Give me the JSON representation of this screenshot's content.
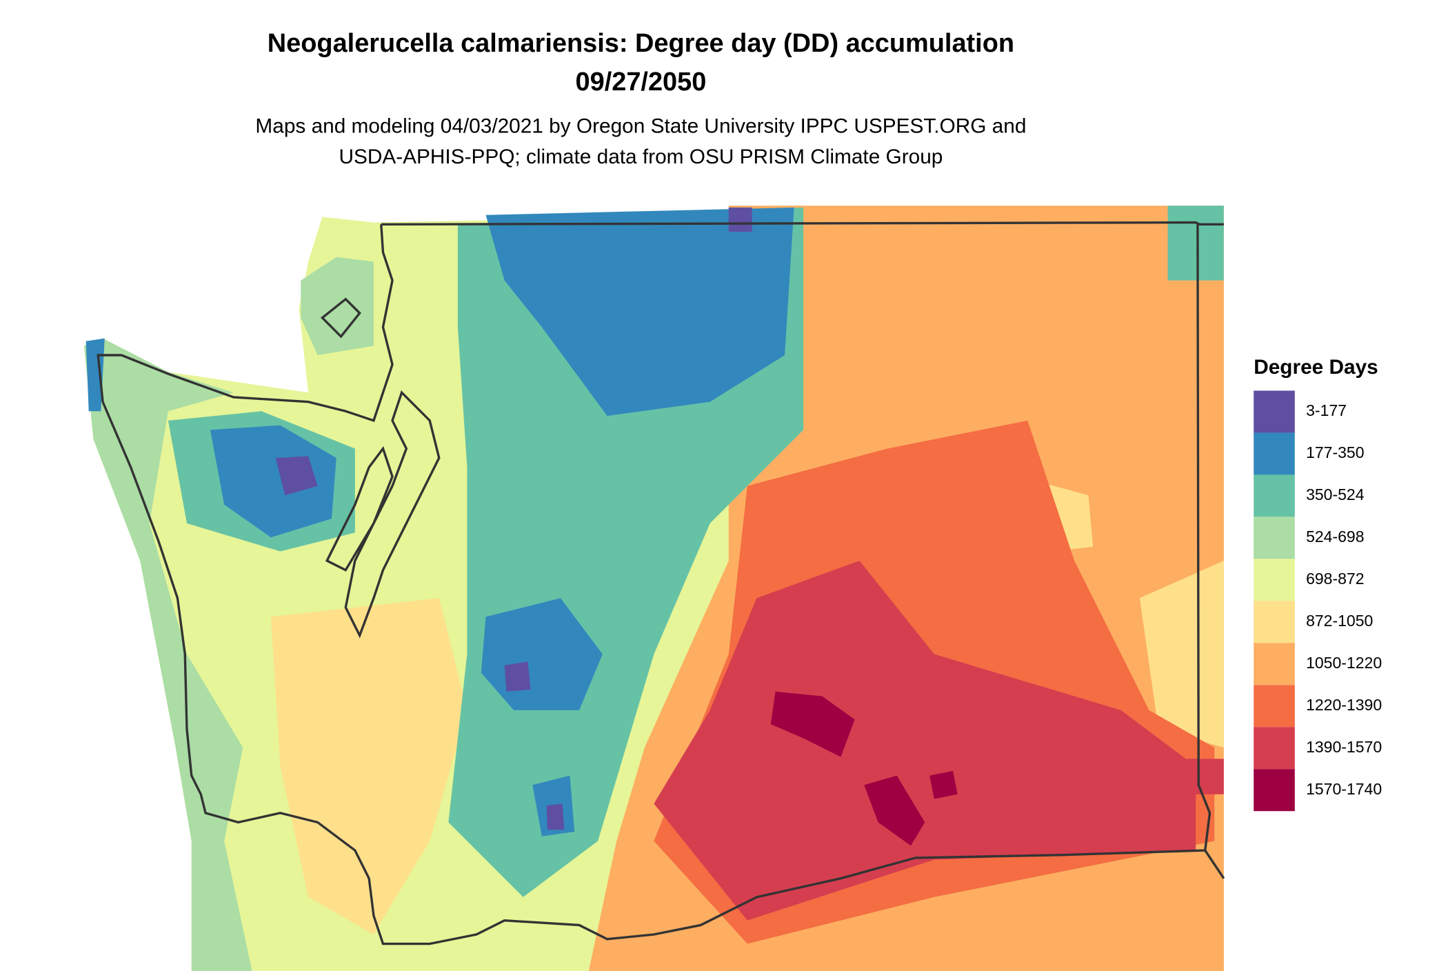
{
  "header": {
    "title": "Neogalerucella calmariensis: Degree day (DD) accumulation",
    "date": "09/27/2050",
    "subtitle": [
      "Maps and modeling 04/03/2021 by Oregon State University IPPC USPEST.ORG and",
      "USDA-APHIS-PPQ; climate data from OSU PRISM Climate Group"
    ]
  },
  "legend": {
    "title": "Degree Days",
    "items": [
      {
        "label": "3-177",
        "color": "#5e4fa2"
      },
      {
        "label": "177-350",
        "color": "#3288bd"
      },
      {
        "label": "350-524",
        "color": "#66c2a5"
      },
      {
        "label": "524-698",
        "color": "#abdda4"
      },
      {
        "label": "698-872",
        "color": "#e6f598"
      },
      {
        "label": "872-1050",
        "color": "#fee08b"
      },
      {
        "label": "1050-1220",
        "color": "#fdae61"
      },
      {
        "label": "1220-1390",
        "color": "#f46d43"
      },
      {
        "label": "1390-1570",
        "color": "#d53e4f"
      },
      {
        "label": "1570-1740",
        "color": "#9e0142"
      }
    ]
  }
}
